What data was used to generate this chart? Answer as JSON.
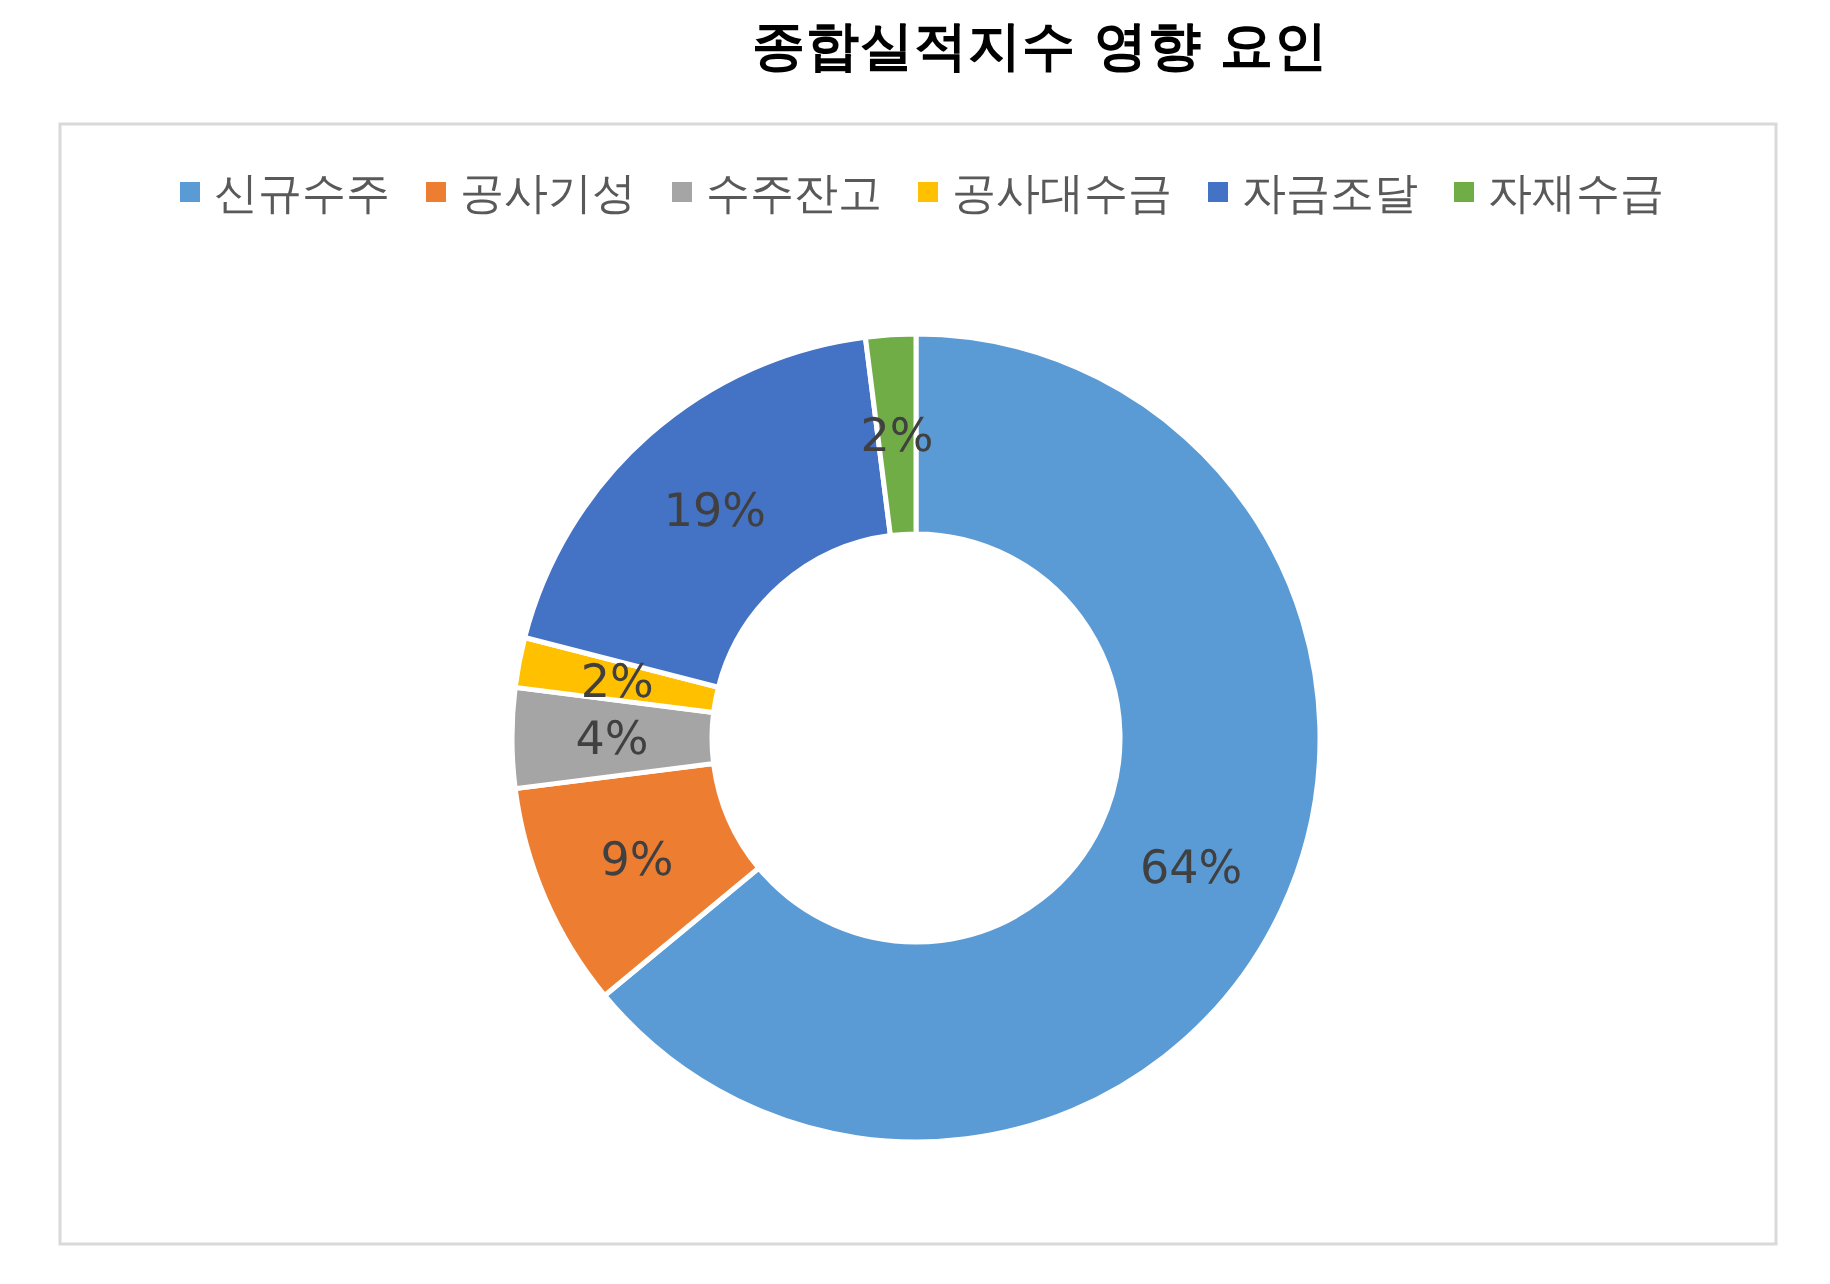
{
  "chart_data": {
    "type": "donut",
    "title": "종합실적지수 영향 요인",
    "categories": [
      "신규수주",
      "공사기성",
      "수주잔고",
      "공사대수금",
      "자금조달",
      "자재수급"
    ],
    "values": [
      64,
      9,
      4,
      2,
      19,
      2
    ],
    "colors": [
      "#5b9bd5",
      "#ed7d31",
      "#a5a5a5",
      "#ffc000",
      "#4472c4",
      "#70ad47"
    ],
    "value_labels": [
      "64%",
      "9%",
      "4%",
      "2%",
      "19%",
      "2%"
    ],
    "legend": "top"
  }
}
